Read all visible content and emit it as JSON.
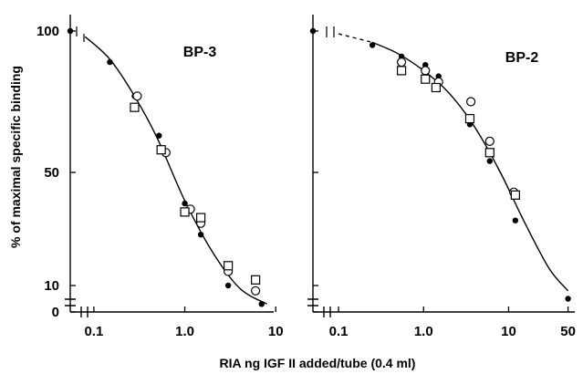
{
  "chart_data": {
    "type": "scatter",
    "shared_xlabel": "RIA ng IGF II added/tube (0.4 ml)",
    "shared_ylabel": "% of maximal specific binding",
    "xscale": "log",
    "panels": [
      {
        "title": "BP-3",
        "x_tick_labels": [
          "0.1",
          "1.0",
          "10"
        ],
        "x_ticks": [
          0.1,
          1.0,
          10
        ],
        "y_tick_labels": [
          "100",
          "50",
          "10",
          "0"
        ],
        "y_ticks": [
          100,
          50,
          10,
          0
        ],
        "xlim": [
          0.055,
          9.5
        ],
        "ylim": [
          0,
          100
        ],
        "series": [
          {
            "marker": "filled-circle",
            "x": [
              0.055,
              0.15,
              0.28,
              0.52,
              1.0,
              1.5,
              3.0,
              7.0
            ],
            "y": [
              100,
              89,
              77,
              63,
              39,
              28,
              10,
              3
            ]
          },
          {
            "marker": "open-circle",
            "x": [
              0.3,
              0.62,
              1.15,
              1.5,
              3.0,
              6.0
            ],
            "y": [
              77,
              57,
              37,
              32,
              15,
              8
            ]
          },
          {
            "marker": "open-square",
            "x": [
              0.28,
              0.55,
              1.0,
              1.5,
              3.0,
              6.0
            ],
            "y": [
              73,
              58,
              36,
              34,
              17,
              12
            ]
          }
        ],
        "curve": {
          "x": [
            0.08,
            0.15,
            0.28,
            0.5,
            1.0,
            2.0,
            4.0,
            8.0
          ],
          "y": [
            98,
            90,
            77,
            62,
            40,
            22,
            9,
            3
          ]
        }
      },
      {
        "title": "BP-2",
        "x_tick_labels": [
          "0.1",
          "1.0",
          "10",
          "50"
        ],
        "x_ticks": [
          0.1,
          1.0,
          10,
          50
        ],
        "y_tick_labels": [],
        "y_ticks": [
          100,
          50,
          10,
          0
        ],
        "xlim": [
          0.05,
          60
        ],
        "ylim": [
          0,
          100
        ],
        "series": [
          {
            "marker": "filled-circle",
            "x": [
              0.05,
              0.25,
              0.55,
              1.05,
              1.5,
              3.5,
              6.0,
              12.0,
              50.0
            ],
            "y": [
              100,
              95,
              91,
              88,
              84,
              67,
              54,
              33,
              5
            ]
          },
          {
            "marker": "open-circle",
            "x": [
              0.55,
              1.05,
              1.5,
              3.6,
              6.0,
              11.5
            ],
            "y": [
              89,
              86,
              82,
              75,
              61,
              43
            ]
          },
          {
            "marker": "open-square",
            "x": [
              0.55,
              1.05,
              1.4,
              3.5,
              6.0,
              12.0
            ],
            "y": [
              86,
              83,
              80,
              69,
              57,
              42
            ]
          }
        ],
        "curve": {
          "x": [
            0.1,
            0.25,
            0.5,
            1.0,
            2.0,
            4.0,
            8.0,
            15.0,
            30.0,
            50.0
          ],
          "y": [
            99,
            96,
            92,
            86,
            78,
            66,
            50,
            33,
            16,
            8
          ]
        },
        "curve_dashed_until_x": 0.2
      }
    ]
  }
}
